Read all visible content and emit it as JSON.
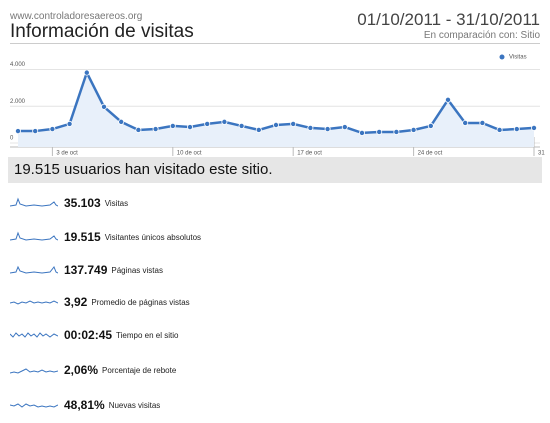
{
  "header": {
    "site": "www.controladoresaereos.org",
    "title": "Información de visitas",
    "date_range": "01/10/2011 - 31/10/2011",
    "comparison": "En comparación con: Sitio"
  },
  "chart_data": {
    "type": "line",
    "categories": [
      null,
      null,
      "3 de oct",
      null,
      null,
      null,
      null,
      null,
      null,
      "10 de oct",
      null,
      null,
      null,
      null,
      null,
      null,
      "17 de oct",
      null,
      null,
      null,
      null,
      null,
      null,
      "24 de oct",
      null,
      null,
      null,
      null,
      null,
      null,
      "31"
    ],
    "series": [
      {
        "name": "Visitas",
        "color": "#3b75c0",
        "values": [
          650,
          650,
          760,
          1040,
          3830,
          1970,
          1150,
          710,
          760,
          930,
          870,
          1040,
          1150,
          930,
          710,
          980,
          1040,
          820,
          760,
          870,
          550,
          600,
          600,
          710,
          930,
          2350,
          1090,
          1090,
          710,
          760,
          820
        ]
      }
    ],
    "ylim": [
      0,
      4300
    ],
    "yticks": [
      0,
      {
        "value": 2000,
        "label": "2.000"
      },
      {
        "value": 4000,
        "label": "4.000"
      }
    ],
    "grid": true,
    "legend": "top-right"
  },
  "summary": "19.515 usuarios han visitado este sitio.",
  "metrics": [
    {
      "value": "35.103",
      "label": "Visitas"
    },
    {
      "value": "19.515",
      "label": "Visitantes únicos absolutos"
    },
    {
      "value": "137.749",
      "label": "Páginas vistas"
    },
    {
      "value": "3,92",
      "label": "Promedio de páginas vistas"
    },
    {
      "value": "00:02:45",
      "label": "Tiempo en el sitio"
    },
    {
      "value": "2,06%",
      "label": "Porcentaje de rebote"
    },
    {
      "value": "48,81%",
      "label": "Nuevas visitas"
    }
  ]
}
